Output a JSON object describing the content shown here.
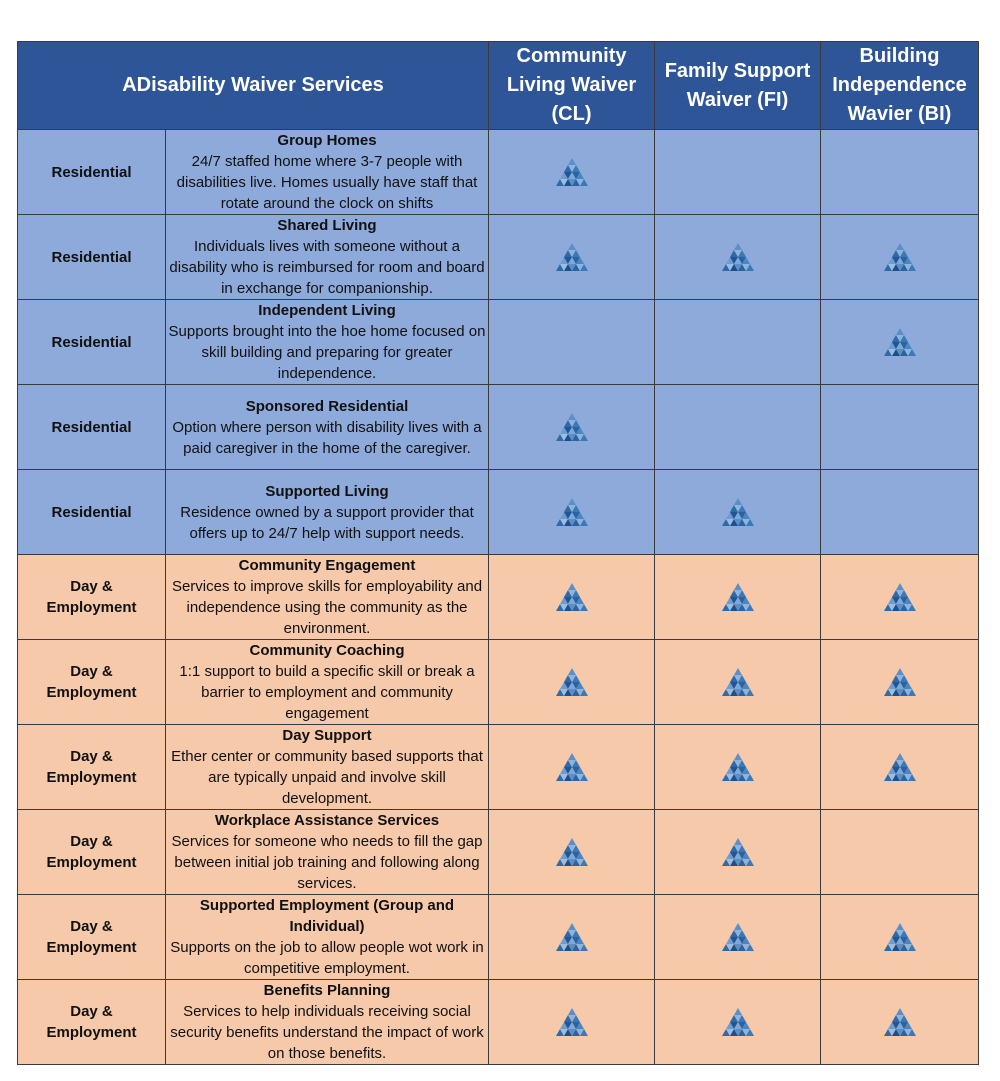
{
  "header": {
    "title": "ADisability Waiver Services",
    "columns": [
      "Community Living Waiver (CL)",
      "Family Support Waiver (FI)",
      "Building Independence Wavier (BI)"
    ]
  },
  "colors": {
    "header_bg": "#2e5597",
    "residential_bg": "#8eaadb",
    "day_employment_bg": "#f6c9ab",
    "icon": "#2e6aa8"
  },
  "icon_name": "triangle-mosaic-icon",
  "rows": [
    {
      "category": "Residential",
      "service": "Group Homes",
      "description": "24/7 staffed home where 3-7 people with disabilities live. Homes usually have staff that rotate around the clock on shifts",
      "cl": true,
      "fi": false,
      "bi": false
    },
    {
      "category": "Residential",
      "service": "Shared Living",
      "description": "Individuals lives with someone without a disability who is reimbursed for room and board in exchange for companionship.",
      "cl": true,
      "fi": true,
      "bi": true
    },
    {
      "category": "Residential",
      "service": "Independent Living",
      "description": "Supports brought into the hoe home focused on skill building and preparing for greater independence.",
      "cl": false,
      "fi": false,
      "bi": true
    },
    {
      "category": "Residential",
      "service": "Sponsored Residential",
      "description": "Option where person with disability lives with a paid caregiver in the home of the caregiver.",
      "cl": true,
      "fi": false,
      "bi": false
    },
    {
      "category": "Residential",
      "service": "Supported  Living",
      "description": "Residence owned by a support provider that offers up to 24/7 help with support needs.",
      "cl": true,
      "fi": true,
      "bi": false
    },
    {
      "category": "Day & Employment",
      "service": "Community Engagement",
      "description": "Services to improve skills for employability and independence using the community as the environment.",
      "cl": true,
      "fi": true,
      "bi": true
    },
    {
      "category": "Day & Employment",
      "service": "Community Coaching",
      "description": "1:1 support to build a specific skill or break a barrier to employment and community engagement",
      "cl": true,
      "fi": true,
      "bi": true
    },
    {
      "category": "Day & Employment",
      "service": "Day Support",
      "description": "Ether center or community based supports that are typically unpaid and involve skill development.",
      "cl": true,
      "fi": true,
      "bi": true
    },
    {
      "category": "Day & Employment",
      "service": "Workplace Assistance Services",
      "description": "Services for someone who needs to fill the gap between initial job training and following along services.",
      "cl": true,
      "fi": true,
      "bi": false
    },
    {
      "category": "Day & Employment",
      "service": "Supported Employment (Group and Individual)",
      "description": "Supports on the job to allow people wot work in competitive employment.",
      "cl": true,
      "fi": true,
      "bi": true
    },
    {
      "category": "Day & Employment",
      "service": "Benefits Planning",
      "description": "Services to help individuals receiving social security benefits understand the impact of work on those benefits.",
      "cl": true,
      "fi": true,
      "bi": true
    }
  ]
}
